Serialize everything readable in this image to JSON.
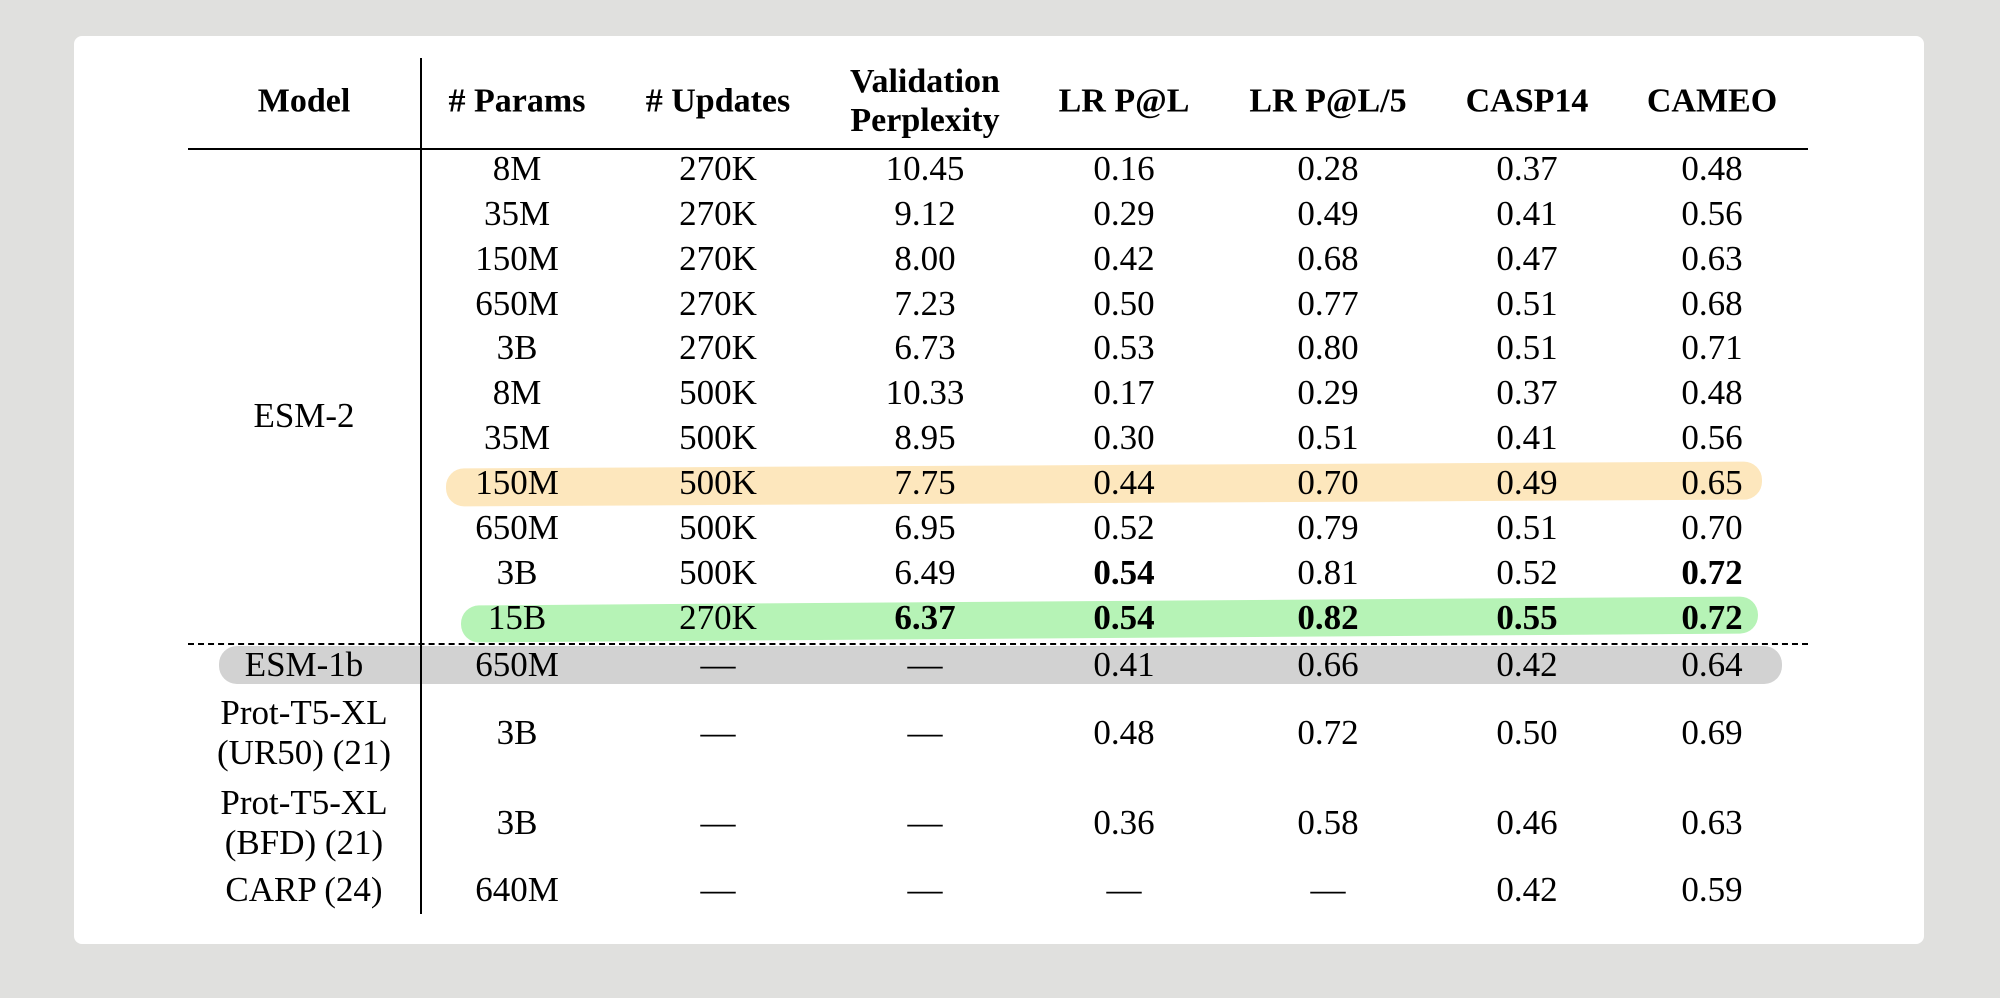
{
  "colors": {
    "background": "#e0e0de",
    "card": "#ffffff",
    "highlight_orange": "#fde7bd",
    "highlight_green": "#b6f3b6",
    "highlight_gray": "#d2d2d2"
  },
  "table": {
    "headers": [
      "Model",
      "# Params",
      "# Updates",
      "Validation Perplexity",
      "LR P@L",
      "LR P@L/5",
      "CASP14",
      "CAMEO"
    ],
    "header_validation_lines": [
      "Validation",
      "Perplexity"
    ],
    "esm2_label": "ESM-2",
    "esm2_rows": [
      [
        "8M",
        "270K",
        "10.45",
        "0.16",
        "0.28",
        "0.37",
        "0.48"
      ],
      [
        "35M",
        "270K",
        "9.12",
        "0.29",
        "0.49",
        "0.41",
        "0.56"
      ],
      [
        "150M",
        "270K",
        "8.00",
        "0.42",
        "0.68",
        "0.47",
        "0.63"
      ],
      [
        "650M",
        "270K",
        "7.23",
        "0.50",
        "0.77",
        "0.51",
        "0.68"
      ],
      [
        "3B",
        "270K",
        "6.73",
        "0.53",
        "0.80",
        "0.51",
        "0.71"
      ],
      [
        "8M",
        "500K",
        "10.33",
        "0.17",
        "0.29",
        "0.37",
        "0.48"
      ],
      [
        "35M",
        "500K",
        "8.95",
        "0.30",
        "0.51",
        "0.41",
        "0.56"
      ],
      [
        "150M",
        "500K",
        "7.75",
        "0.44",
        "0.70",
        "0.49",
        "0.65"
      ],
      [
        "650M",
        "500K",
        "6.95",
        "0.52",
        "0.79",
        "0.51",
        "0.70"
      ],
      [
        "3B",
        "500K",
        "6.49",
        "0.54",
        "0.81",
        "0.52",
        "0.72"
      ],
      [
        "15B",
        "270K",
        "6.37",
        "0.54",
        "0.82",
        "0.55",
        "0.72"
      ]
    ],
    "other_rows": [
      {
        "model": [
          "ESM-1b"
        ],
        "values": [
          "650M",
          "—",
          "—",
          "0.41",
          "0.66",
          "0.42",
          "0.64"
        ]
      },
      {
        "model": [
          "Prot-T5-XL",
          "(UR50) (21)"
        ],
        "values": [
          "3B",
          "—",
          "—",
          "0.48",
          "0.72",
          "0.50",
          "0.69"
        ]
      },
      {
        "model": [
          "Prot-T5-XL",
          "(BFD) (21)"
        ],
        "values": [
          "3B",
          "—",
          "—",
          "0.36",
          "0.58",
          "0.46",
          "0.63"
        ]
      },
      {
        "model": [
          "CARP (24)"
        ],
        "values": [
          "640M",
          "—",
          "—",
          "—",
          "—",
          "0.42",
          "0.59"
        ]
      }
    ],
    "bold_cells": [
      [
        9,
        3
      ],
      [
        9,
        6
      ],
      [
        10,
        2
      ],
      [
        10,
        3
      ],
      [
        10,
        4
      ],
      [
        10,
        5
      ],
      [
        10,
        6
      ]
    ]
  }
}
